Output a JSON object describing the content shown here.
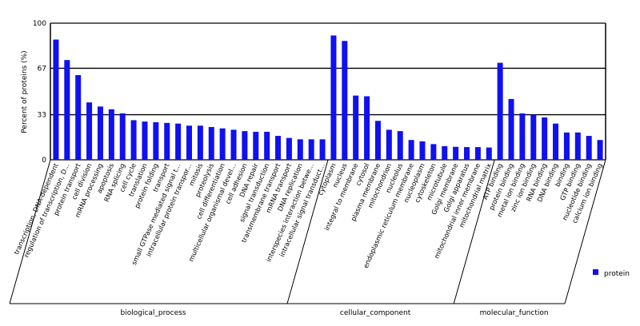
{
  "chart_data": {
    "type": "bar",
    "ylabel": "Percent of proteins (%)",
    "ylim": [
      0,
      100
    ],
    "yticks": [
      "0",
      "33",
      "67",
      "100"
    ],
    "grid": true,
    "legend": {
      "placement": "right",
      "entries": [
        "protein"
      ]
    },
    "bar_color": "#1010f0",
    "groups": [
      {
        "name": "biological_process",
        "categories": [
          "transcription, DNA-dependent",
          "regulation of transcription, D...",
          "protein transport",
          "cell division",
          "mRNA processing",
          "apoptosis",
          "RNA splicing",
          "cell cycle",
          "translation",
          "protein folding",
          "transport",
          "small GTPase mediated signal t...",
          "intracellular protein transpor...",
          "mitosis",
          "proteolysis",
          "cell differentiation",
          "multicellular organismal devel...",
          "cell adhesion",
          "DNA repair",
          "signal transduction",
          "transmembrane transport",
          "mRNA transport",
          "DNA replication",
          "interspecies interaction betwe...",
          "intracellular signal transduct..."
        ],
        "values": [
          88,
          73,
          62,
          42,
          39,
          37,
          34,
          29,
          28,
          27.5,
          27,
          26.5,
          25,
          25,
          24,
          23,
          22,
          21,
          20.5,
          20.5,
          17.5,
          16,
          15,
          15,
          15
        ]
      },
      {
        "name": "cellular_component",
        "categories": [
          "cytoplasm",
          "nucleus",
          "integral to membrane",
          "cytosol",
          "plasma membrane",
          "mitochondrion",
          "nucleolus",
          "endoplasmic reticulum membrane",
          "nucleoplasm",
          "cytoskeleton",
          "microtubule",
          "Golgi membrane",
          "Golgi apparatus",
          "mitochondrial inner membrane",
          "mitochondrial matrix"
        ],
        "values": [
          91,
          87,
          47,
          46.5,
          28.5,
          22,
          21,
          14.5,
          13.5,
          11.5,
          10,
          9.5,
          9.3,
          9.3,
          9
        ]
      },
      {
        "name": "molecular_function",
        "categories": [
          "ATP binding",
          "protein binding",
          "metal ion binding",
          "zinc ion binding",
          "RNA binding",
          "DNA binding",
          "binding",
          "GTP binding",
          "nucleotide binding",
          "calcium ion binding"
        ],
        "values": [
          71,
          44.5,
          34,
          33,
          31,
          26.5,
          20,
          20,
          17.5,
          14.5
        ]
      }
    ]
  }
}
